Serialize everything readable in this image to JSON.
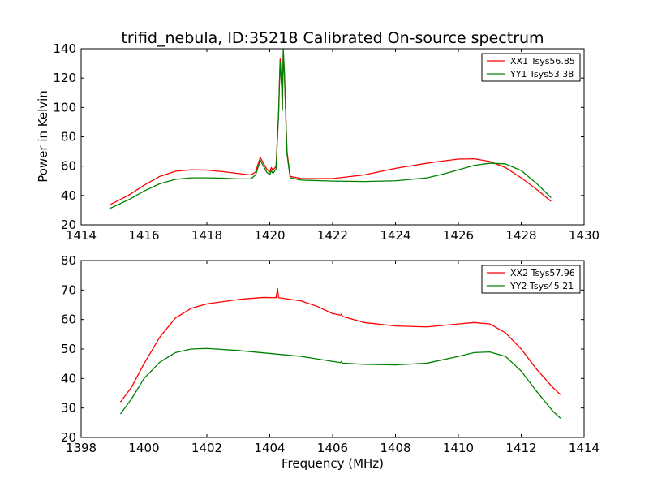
{
  "figure": {
    "title": "trifid_nebula, ID:35218 Calibrated On-source spectrum",
    "xlabel": "Frequency (MHz)",
    "ylabel": "Power in Kelvin"
  },
  "colors": {
    "red": "#ff0000",
    "green": "#008000"
  },
  "chart_data": [
    {
      "type": "line",
      "xlim": [
        1414,
        1430
      ],
      "ylim": [
        20,
        140
      ],
      "xticks": [
        1414,
        1416,
        1418,
        1420,
        1422,
        1424,
        1426,
        1428,
        1430
      ],
      "yticks": [
        20,
        40,
        60,
        80,
        100,
        120,
        140
      ],
      "legend_position": "top-right",
      "series": [
        {
          "name": "XX1 Tsys56.85",
          "color": "#ff0000",
          "points": [
            [
              1414.9,
              33.5
            ],
            [
              1415.5,
              40
            ],
            [
              1416,
              47
            ],
            [
              1416.5,
              53
            ],
            [
              1417,
              56.5
            ],
            [
              1417.5,
              57.5
            ],
            [
              1418,
              57.3
            ],
            [
              1418.5,
              56.3
            ],
            [
              1419,
              55
            ],
            [
              1419.4,
              54
            ],
            [
              1419.55,
              56
            ],
            [
              1419.7,
              66
            ],
            [
              1419.8,
              62
            ],
            [
              1419.9,
              58
            ],
            [
              1420.0,
              56
            ],
            [
              1420.05,
              59
            ],
            [
              1420.1,
              57
            ],
            [
              1420.2,
              60
            ],
            [
              1420.28,
              95
            ],
            [
              1420.33,
              133
            ],
            [
              1420.38,
              115
            ],
            [
              1420.4,
              99
            ],
            [
              1420.43,
              138
            ],
            [
              1420.47,
              120
            ],
            [
              1420.55,
              70
            ],
            [
              1420.65,
              53
            ],
            [
              1421,
              51.5
            ],
            [
              1422,
              51.5
            ],
            [
              1423,
              54
            ],
            [
              1424,
              58.5
            ],
            [
              1425,
              62
            ],
            [
              1425.5,
              63.5
            ],
            [
              1426,
              64.8
            ],
            [
              1426.5,
              65
            ],
            [
              1427,
              63.2
            ],
            [
              1427.5,
              59
            ],
            [
              1428,
              52
            ],
            [
              1428.5,
              44
            ],
            [
              1428.95,
              36
            ]
          ]
        },
        {
          "name": "YY1 Tsys53.38",
          "color": "#008000",
          "points": [
            [
              1414.9,
              31
            ],
            [
              1415.5,
              37
            ],
            [
              1416,
              43
            ],
            [
              1416.5,
              48
            ],
            [
              1417,
              51
            ],
            [
              1417.5,
              52
            ],
            [
              1418,
              52
            ],
            [
              1418.5,
              51.8
            ],
            [
              1419,
              51.3
            ],
            [
              1419.4,
              51.3
            ],
            [
              1419.55,
              54
            ],
            [
              1419.7,
              64
            ],
            [
              1419.8,
              60
            ],
            [
              1419.9,
              56
            ],
            [
              1420.0,
              54
            ],
            [
              1420.05,
              57
            ],
            [
              1420.1,
              55
            ],
            [
              1420.2,
              58
            ],
            [
              1420.28,
              95
            ],
            [
              1420.33,
              131
            ],
            [
              1420.38,
              113
            ],
            [
              1420.4,
              98
            ],
            [
              1420.43,
              140
            ],
            [
              1420.47,
              122
            ],
            [
              1420.55,
              68
            ],
            [
              1420.65,
              52
            ],
            [
              1421,
              50.5
            ],
            [
              1422,
              49.8
            ],
            [
              1423,
              49.5
            ],
            [
              1424,
              50
            ],
            [
              1425,
              52
            ],
            [
              1425.5,
              54.5
            ],
            [
              1426,
              57.5
            ],
            [
              1426.5,
              60.5
            ],
            [
              1427,
              62
            ],
            [
              1427.5,
              61.5
            ],
            [
              1428,
              57
            ],
            [
              1428.5,
              48
            ],
            [
              1428.95,
              38.5
            ]
          ]
        }
      ]
    },
    {
      "type": "line",
      "xlim": [
        1398,
        1414
      ],
      "ylim": [
        20,
        80
      ],
      "xticks": [
        1398,
        1400,
        1402,
        1404,
        1406,
        1408,
        1410,
        1412,
        1414
      ],
      "yticks": [
        20,
        30,
        40,
        50,
        60,
        70,
        80
      ],
      "legend_position": "top-right",
      "series": [
        {
          "name": "XX2 Tsys57.96",
          "color": "#ff0000",
          "points": [
            [
              1399.25,
              32
            ],
            [
              1399.6,
              37
            ],
            [
              1400,
              45
            ],
            [
              1400.5,
              54
            ],
            [
              1401,
              60.5
            ],
            [
              1401.5,
              63.8
            ],
            [
              1402,
              65.3
            ],
            [
              1403,
              66.8
            ],
            [
              1403.8,
              67.5
            ],
            [
              1404.2,
              67.4
            ],
            [
              1404.25,
              70.5
            ],
            [
              1404.28,
              67.4
            ],
            [
              1405,
              66.3
            ],
            [
              1405.5,
              64.5
            ],
            [
              1406,
              62
            ],
            [
              1406.25,
              61.5
            ],
            [
              1406.28,
              61.8
            ],
            [
              1406.32,
              61
            ],
            [
              1407,
              59
            ],
            [
              1408,
              57.8
            ],
            [
              1409,
              57.5
            ],
            [
              1410,
              58.5
            ],
            [
              1410.5,
              59
            ],
            [
              1411,
              58.5
            ],
            [
              1411.5,
              55.5
            ],
            [
              1412,
              50
            ],
            [
              1412.5,
              43
            ],
            [
              1413,
              37
            ],
            [
              1413.25,
              34.5
            ]
          ]
        },
        {
          "name": "YY2 Tsys45.21",
          "color": "#008000",
          "points": [
            [
              1399.25,
              28
            ],
            [
              1399.6,
              33
            ],
            [
              1400,
              40
            ],
            [
              1400.5,
              45.5
            ],
            [
              1401,
              48.8
            ],
            [
              1401.5,
              50
            ],
            [
              1402,
              50.2
            ],
            [
              1403,
              49.5
            ],
            [
              1404,
              48.5
            ],
            [
              1405,
              47.5
            ],
            [
              1406,
              45.8
            ],
            [
              1406.25,
              45.4
            ],
            [
              1406.28,
              45.8
            ],
            [
              1406.32,
              45.2
            ],
            [
              1407,
              44.8
            ],
            [
              1408,
              44.6
            ],
            [
              1409,
              45.2
            ],
            [
              1410,
              47.5
            ],
            [
              1410.5,
              48.8
            ],
            [
              1411,
              49
            ],
            [
              1411.5,
              47.5
            ],
            [
              1412,
              42.5
            ],
            [
              1412.5,
              35.5
            ],
            [
              1413,
              29
            ],
            [
              1413.25,
              26.5
            ]
          ]
        }
      ]
    }
  ]
}
